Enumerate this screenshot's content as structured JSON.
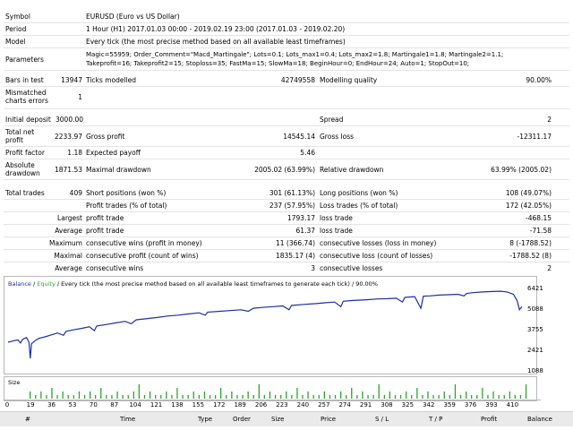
{
  "settings": {
    "symbol_label": "Symbol",
    "symbol_value": "EURUSD (Euro vs US Dollar)",
    "period_label": "Period",
    "period_value": "1 Hour (H1) 2017.01.03 00:00 - 2019.02.19 23:00 (2017.01.03 - 2019.02.20)",
    "model_label": "Model",
    "model_value": "Every tick (the most precise method based on all available least timeframes)",
    "parameters_label": "Parameters",
    "parameters_line1": "Magic=55959; Order_Comment=\"Macd_Martingale\"; Lots=0.1; Lots_max1=0.4; Lots_max2=1.8; Martingale1=1.8; Martingale2=1.1;",
    "parameters_line2": "Takeprofit=16; Takeprofit2=15; Stoploss=35; FastMa=15; SlowMa=18; BeginHour=0; EndHour=24; Auto=1; StopOut=10;"
  },
  "stats": {
    "bars_label": "Bars in test",
    "bars_value": "13947",
    "ticks_label": "Ticks modelled",
    "ticks_value": "42749558",
    "quality_label": "Modelling quality",
    "quality_value": "90.00%",
    "mismatched_label1": "Mismatched",
    "mismatched_label2": "charts errors",
    "mismatched_value": "1",
    "deposit_label": "Initial deposit",
    "deposit_value": "3000.00",
    "spread_label": "Spread",
    "spread_value": "2",
    "netprofit_label1": "Total net",
    "netprofit_label2": "profit",
    "netprofit_value": "2233.97",
    "grossprofit_label": "Gross profit",
    "grossprofit_value": "14545.14",
    "grossloss_label": "Gross loss",
    "grossloss_value": "-12311.17",
    "pf_label": "Profit factor",
    "pf_value": "1.18",
    "ep_label": "Expected payoff",
    "ep_value": "5.46",
    "absdd_label1": "Absolute",
    "absdd_label2": "drawdown",
    "absdd_value": "1871.53",
    "maxdd_label": "Maximal drawdown",
    "maxdd_value": "2005.02 (63.99%)",
    "reldd_label": "Relative drawdown",
    "reldd_value": "63.99% (2005.02)",
    "trades_label": "Total trades",
    "trades_value": "409",
    "short_label": "Short positions (won %)",
    "short_value": "301 (61.13%)",
    "long_label": "Long positions (won %)",
    "long_value": "108 (49.07%)",
    "ptrades_label": "Profit trades (% of total)",
    "ptrades_value": "237 (57.95%)",
    "ltrades_label": "Loss trades (% of total)",
    "ltrades_value": "172 (42.05%)",
    "largest_label": "Largest",
    "largest_profit_label": "profit trade",
    "largest_profit_value": "1793.17",
    "largest_loss_label": "loss trade",
    "largest_loss_value": "-468.15",
    "average_label": "Average",
    "avg_profit_label": "profit trade",
    "avg_profit_value": "61.37",
    "avg_loss_label": "loss trade",
    "avg_loss_value": "-71.58",
    "maximum_label": "Maximum",
    "mcw_label": "consecutive wins (profit in money)",
    "mcw_value": "11 (366.74)",
    "mcl_label": "consecutive losses (loss in money)",
    "mcl_value": "8 (-1788.52)",
    "maximal_label": "Maximal",
    "mcp_label": "consecutive profit (count of wins)",
    "mcp_value": "1835.17 (4)",
    "mcloss_label": "consecutive loss (count of losses)",
    "mcloss_value": "-1788.52 (8)",
    "average2_label": "Average",
    "acw_label": "consecutive wins",
    "acw_value": "3",
    "acl_label": "consecutive losses",
    "acl_value": "2"
  },
  "chart_data": {
    "type": "line",
    "legend_balance": "Balance",
    "legend_sep": " / ",
    "legend_equity": "Equity",
    "legend_rest": " / Every tick (the most precise method based on all available least timeframes to generate each tick) / 90.00%",
    "size_label": "Size",
    "y_ticks": [
      "6421",
      "5088",
      "3755",
      "2421",
      "1088"
    ],
    "ylim": [
      1088,
      6421
    ],
    "x_ticks": [
      "0",
      "19",
      "36",
      "53",
      "70",
      "87",
      "104",
      "121",
      "138",
      "155",
      "172",
      "189",
      "206",
      "223",
      "240",
      "257",
      "274",
      "291",
      "308",
      "325",
      "342",
      "359",
      "376",
      "393",
      "410"
    ],
    "xlim": [
      0,
      417
    ],
    "series": [
      {
        "name": "Balance",
        "points": [
          [
            0,
            3000
          ],
          [
            5,
            3100
          ],
          [
            8,
            3150
          ],
          [
            10,
            2950
          ],
          [
            12,
            3200
          ],
          [
            15,
            3300
          ],
          [
            17,
            3000
          ],
          [
            18,
            1950
          ],
          [
            19,
            2900
          ],
          [
            22,
            3100
          ],
          [
            25,
            3250
          ],
          [
            30,
            3350
          ],
          [
            36,
            3500
          ],
          [
            40,
            3600
          ],
          [
            45,
            3450
          ],
          [
            47,
            3700
          ],
          [
            53,
            3800
          ],
          [
            60,
            3900
          ],
          [
            66,
            4000
          ],
          [
            70,
            3750
          ],
          [
            72,
            4050
          ],
          [
            80,
            4150
          ],
          [
            87,
            4250
          ],
          [
            95,
            4350
          ],
          [
            100,
            4200
          ],
          [
            104,
            4450
          ],
          [
            110,
            4500
          ],
          [
            121,
            4600
          ],
          [
            130,
            4700
          ],
          [
            138,
            4750
          ],
          [
            145,
            4820
          ],
          [
            155,
            4900
          ],
          [
            160,
            4750
          ],
          [
            162,
            4950
          ],
          [
            172,
            5000
          ],
          [
            180,
            5050
          ],
          [
            189,
            5100
          ],
          [
            195,
            5000
          ],
          [
            199,
            5200
          ],
          [
            206,
            5250
          ],
          [
            215,
            5300
          ],
          [
            223,
            5350
          ],
          [
            228,
            5100
          ],
          [
            230,
            5380
          ],
          [
            240,
            5450
          ],
          [
            250,
            5500
          ],
          [
            257,
            5550
          ],
          [
            265,
            5600
          ],
          [
            270,
            5300
          ],
          [
            272,
            5650
          ],
          [
            280,
            5700
          ],
          [
            291,
            5750
          ],
          [
            300,
            5800
          ],
          [
            308,
            5820
          ],
          [
            315,
            5850
          ],
          [
            320,
            5600
          ],
          [
            322,
            5900
          ],
          [
            330,
            5950
          ],
          [
            335,
            5200
          ],
          [
            337,
            5980
          ],
          [
            342,
            6000
          ],
          [
            350,
            6050
          ],
          [
            359,
            6080
          ],
          [
            365,
            6100
          ],
          [
            370,
            6000
          ],
          [
            372,
            6150
          ],
          [
            376,
            6200
          ],
          [
            385,
            6250
          ],
          [
            393,
            6280
          ],
          [
            400,
            6300
          ],
          [
            405,
            6250
          ],
          [
            410,
            6100
          ],
          [
            413,
            5700
          ],
          [
            415,
            5100
          ],
          [
            417,
            5300
          ]
        ]
      }
    ],
    "size_bars": [
      2,
      1,
      2,
      1,
      3,
      1,
      2,
      1,
      1,
      2,
      1,
      2,
      1,
      3,
      1,
      1,
      2,
      1,
      1,
      2,
      4,
      1,
      2,
      1,
      1,
      2,
      1,
      3,
      1,
      1,
      2,
      1,
      2,
      1,
      1,
      3,
      1,
      2,
      1,
      1,
      2,
      1,
      4,
      1,
      2,
      1,
      1,
      2,
      1,
      3,
      1,
      2,
      1,
      1,
      2,
      1,
      1,
      2,
      1,
      3,
      1,
      2,
      1,
      1,
      4,
      1,
      2,
      1,
      1,
      2,
      1,
      3,
      1,
      2,
      1,
      1,
      2,
      1,
      4,
      1,
      2,
      1,
      1,
      3,
      1,
      2,
      1,
      1,
      2,
      1,
      1,
      4
    ],
    "size_max": 4
  },
  "orders_header": [
    "#",
    "Time",
    "Type",
    "Order",
    "Size",
    "Price",
    "S / L",
    "T / P",
    "Profit",
    "Balance"
  ]
}
